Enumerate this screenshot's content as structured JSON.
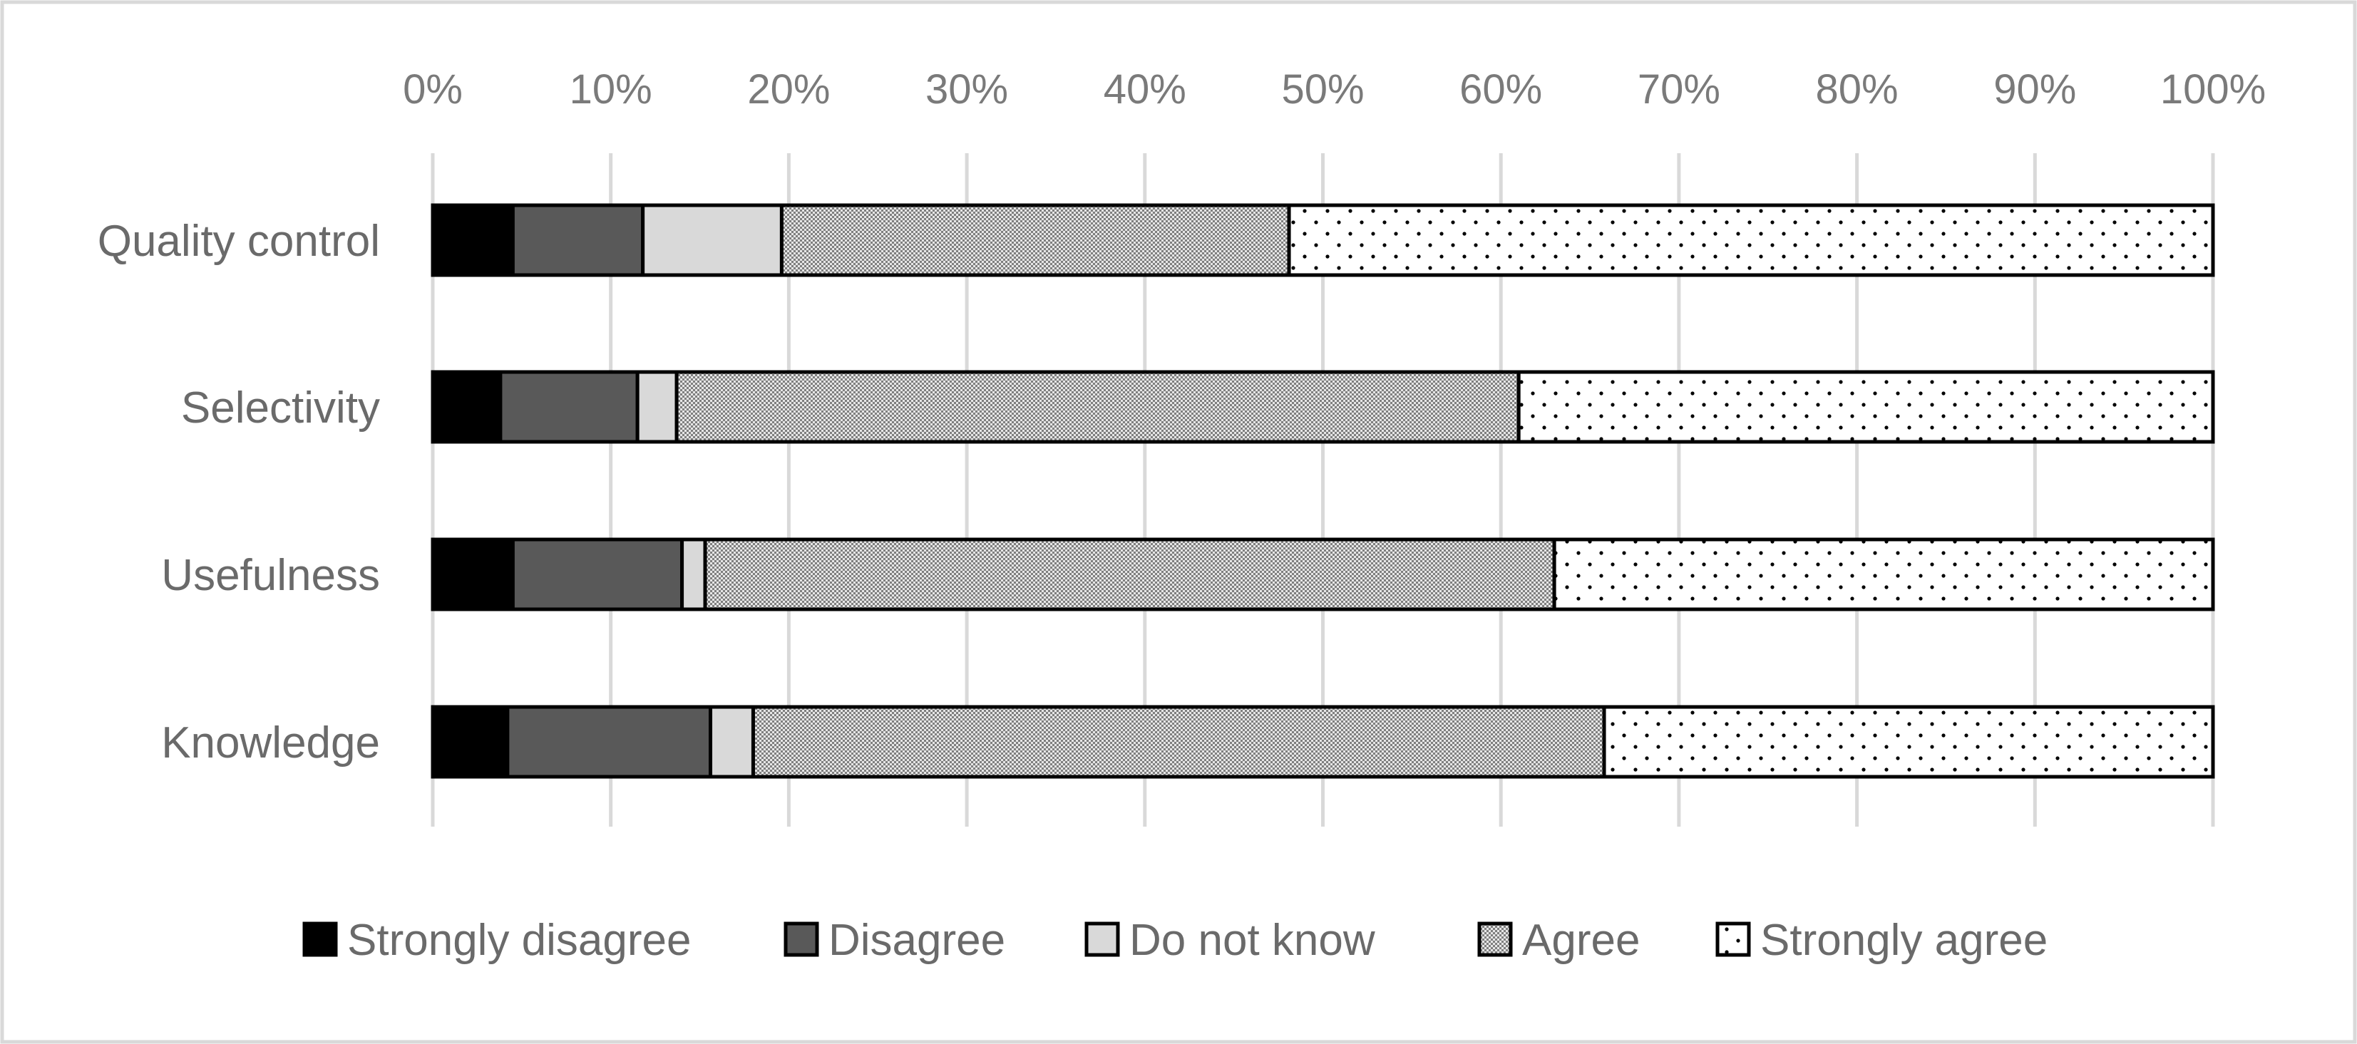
{
  "chart_data": {
    "type": "bar",
    "orientation": "horizontal",
    "stacked": "percent",
    "title": "",
    "xlabel": "",
    "ylabel": "",
    "xlim": [
      0,
      100
    ],
    "x_ticks": [
      "0%",
      "10%",
      "20%",
      "30%",
      "40%",
      "50%",
      "60%",
      "70%",
      "80%",
      "90%",
      "100%"
    ],
    "x_axis_position": "top",
    "grid": true,
    "legend_position": "bottom",
    "categories": [
      "Quality control",
      "Selectivity",
      "Usefulness",
      "Knowledge"
    ],
    "series": [
      {
        "name": "Strongly disagree",
        "values": [
          4.5,
          3.8,
          4.5,
          4.2
        ],
        "color": "#000000",
        "pattern": "solid"
      },
      {
        "name": "Disagree",
        "values": [
          7.3,
          7.7,
          9.5,
          11.4
        ],
        "color": "#595959",
        "pattern": "solid"
      },
      {
        "name": "Do not know",
        "values": [
          7.8,
          2.2,
          1.3,
          2.4
        ],
        "color": "#d9d9d9",
        "pattern": "solid"
      },
      {
        "name": "Agree",
        "values": [
          28.5,
          47.3,
          47.7,
          47.8
        ],
        "color": "#bfbfbf",
        "pattern": "checker"
      },
      {
        "name": "Strongly agree",
        "values": [
          51.9,
          39.0,
          37.0,
          34.2
        ],
        "color": "#ffffff",
        "pattern": "dots"
      }
    ]
  }
}
